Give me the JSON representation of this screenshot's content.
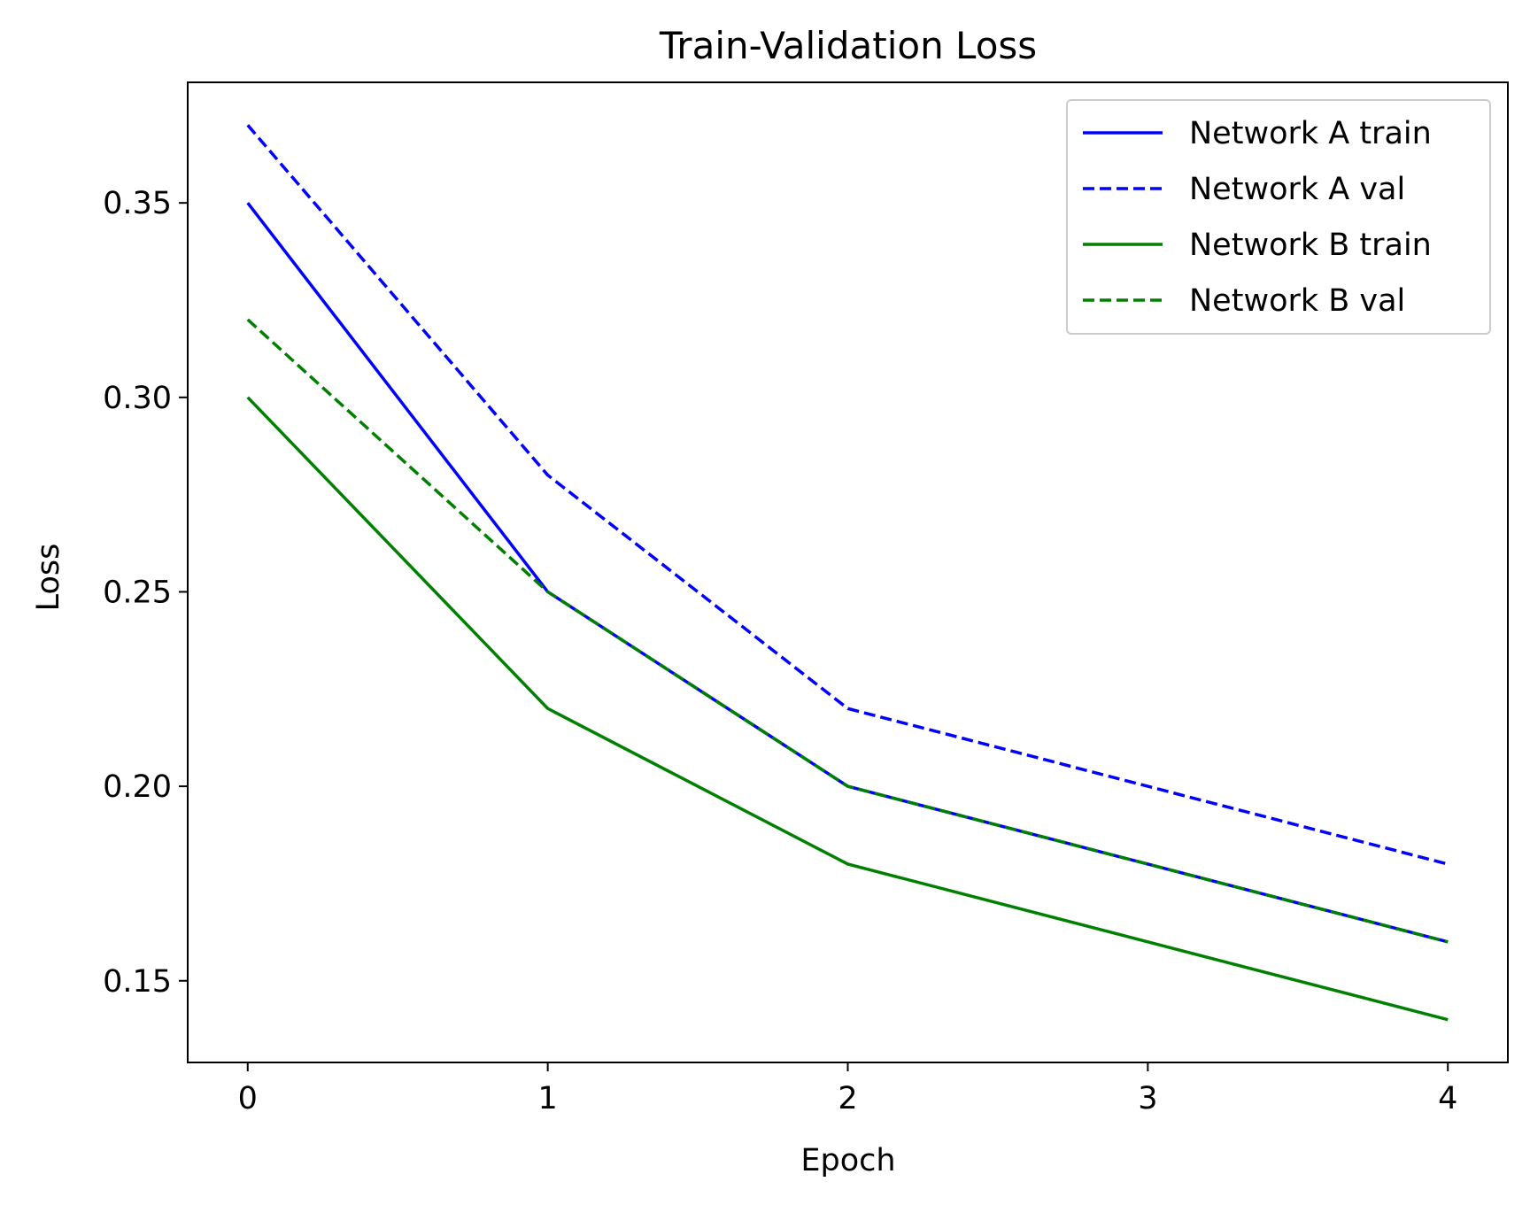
{
  "chart_data": {
    "type": "line",
    "title": "Train-Validation Loss",
    "xlabel": "Epoch",
    "ylabel": "Loss",
    "x": [
      0,
      1,
      2,
      3,
      4
    ],
    "xlim": [
      -0.2,
      4.2
    ],
    "ylim": [
      0.129,
      0.381
    ],
    "xticks": [
      0,
      1,
      2,
      3,
      4
    ],
    "xtick_labels": [
      "0",
      "1",
      "2",
      "3",
      "4"
    ],
    "yticks": [
      0.15,
      0.2,
      0.25,
      0.3,
      0.35
    ],
    "ytick_labels": [
      "0.15",
      "0.20",
      "0.25",
      "0.30",
      "0.35"
    ],
    "grid": false,
    "legend_position": "top-right",
    "series": [
      {
        "name": "Network A train",
        "values": [
          0.35,
          0.25,
          0.2,
          0.18,
          0.16
        ],
        "color": "#0000ff",
        "style": "solid"
      },
      {
        "name": "Network A val",
        "values": [
          0.37,
          0.28,
          0.22,
          0.2,
          0.18
        ],
        "color": "#0000ff",
        "style": "dashed"
      },
      {
        "name": "Network B train",
        "values": [
          0.3,
          0.22,
          0.18,
          0.16,
          0.14
        ],
        "color": "#008000",
        "style": "solid"
      },
      {
        "name": "Network B val",
        "values": [
          0.32,
          0.25,
          0.2,
          0.18,
          0.16
        ],
        "color": "#008000",
        "style": "dashed"
      }
    ]
  }
}
